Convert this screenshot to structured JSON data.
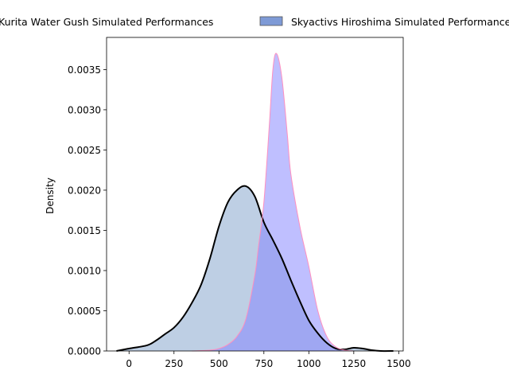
{
  "chart_data": {
    "type": "area",
    "title": "",
    "xlabel": "",
    "ylabel": "Density",
    "xlim": [
      -125,
      1525
    ],
    "ylim": [
      0,
      0.0039
    ],
    "x_ticks": [
      0,
      250,
      500,
      750,
      1000,
      1250,
      1500
    ],
    "y_ticks": [
      0.0,
      0.0005,
      0.001,
      0.0015,
      0.002,
      0.0025,
      0.003,
      0.0035
    ],
    "y_tick_labels": [
      "0.0000",
      "0.0005",
      "0.0010",
      "0.0015",
      "0.0020",
      "0.0025",
      "0.0030",
      "0.0035"
    ],
    "legend_position": "top-center, outside",
    "grid": false,
    "series": [
      {
        "name": "Kurita Water Gush Simulated Performances",
        "fill_color": "#b0c4de",
        "line_color": "#000000",
        "x": [
          -70,
          0,
          100,
          150,
          200,
          250,
          300,
          350,
          400,
          450,
          500,
          550,
          600,
          650,
          700,
          750,
          800,
          850,
          900,
          950,
          1000,
          1050,
          1100,
          1150,
          1200,
          1250,
          1300,
          1350,
          1400,
          1470
        ],
        "y": [
          0.0,
          3e-05,
          7e-05,
          0.00013,
          0.00021,
          0.00029,
          0.00042,
          0.0006,
          0.00082,
          0.00115,
          0.00155,
          0.00185,
          0.002,
          0.00205,
          0.00192,
          0.0016,
          0.00138,
          0.00115,
          0.00088,
          0.00062,
          0.00038,
          0.00022,
          0.0001,
          3e-05,
          2e-05,
          4e-05,
          3e-05,
          1e-05,
          0.0,
          0.0
        ]
      },
      {
        "name": "Skyactivs Hiroshima Simulated Performances",
        "fill_color": "#8080ff",
        "line_color": "#ff8fbf",
        "x": [
          350,
          450,
          500,
          550,
          600,
          650,
          700,
          720,
          750,
          780,
          800,
          820,
          850,
          880,
          900,
          950,
          1000,
          1050,
          1100,
          1150,
          1200,
          1250
        ],
        "y": [
          0.0,
          1e-05,
          3e-05,
          8e-05,
          0.00018,
          0.0004,
          0.00095,
          0.0013,
          0.00185,
          0.0028,
          0.0035,
          0.0037,
          0.0034,
          0.0027,
          0.0022,
          0.00155,
          0.00105,
          0.0005,
          0.00018,
          5e-05,
          1e-05,
          0.0
        ]
      }
    ]
  }
}
